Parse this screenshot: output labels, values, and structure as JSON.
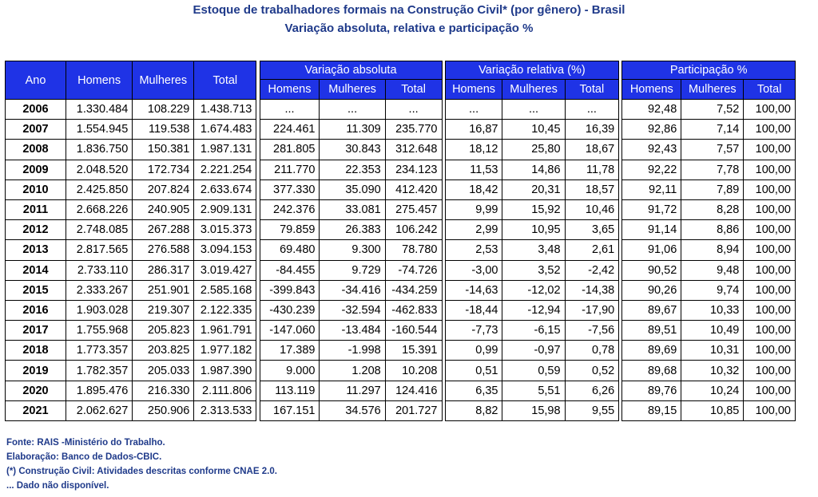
{
  "title": "Estoque de trabalhadores formais na Construção Civil* (por gênero) - Brasil",
  "subtitle": "Variação absoluta, relativa e participação %",
  "headers": {
    "ano": "Ano",
    "homens": "Homens",
    "mulheres": "Mulheres",
    "total": "Total",
    "var_abs": "Variação absoluta",
    "var_rel": "Variação  relativa (%)",
    "part": "Participação %",
    "sub": [
      "Homens",
      "Mulheres",
      "Total"
    ]
  },
  "rows": [
    {
      "ano": "2006",
      "h": "1.330.484",
      "m": "108.229",
      "t": "1.438.713",
      "ah": "...",
      "am": "...",
      "at": "...",
      "rh": "...",
      "rm": "...",
      "rt": "...",
      "ph": "92,48",
      "pm": "7,52",
      "pt": "100,00"
    },
    {
      "ano": "2007",
      "h": "1.554.945",
      "m": "119.538",
      "t": "1.674.483",
      "ah": "224.461",
      "am": "11.309",
      "at": "235.770",
      "rh": "16,87",
      "rm": "10,45",
      "rt": "16,39",
      "ph": "92,86",
      "pm": "7,14",
      "pt": "100,00"
    },
    {
      "ano": "2008",
      "h": "1.836.750",
      "m": "150.381",
      "t": "1.987.131",
      "ah": "281.805",
      "am": "30.843",
      "at": "312.648",
      "rh": "18,12",
      "rm": "25,80",
      "rt": "18,67",
      "ph": "92,43",
      "pm": "7,57",
      "pt": "100,00"
    },
    {
      "ano": "2009",
      "h": "2.048.520",
      "m": "172.734",
      "t": "2.221.254",
      "ah": "211.770",
      "am": "22.353",
      "at": "234.123",
      "rh": "11,53",
      "rm": "14,86",
      "rt": "11,78",
      "ph": "92,22",
      "pm": "7,78",
      "pt": "100,00"
    },
    {
      "ano": "2010",
      "h": "2.425.850",
      "m": "207.824",
      "t": "2.633.674",
      "ah": "377.330",
      "am": "35.090",
      "at": "412.420",
      "rh": "18,42",
      "rm": "20,31",
      "rt": "18,57",
      "ph": "92,11",
      "pm": "7,89",
      "pt": "100,00"
    },
    {
      "ano": "2011",
      "h": "2.668.226",
      "m": "240.905",
      "t": "2.909.131",
      "ah": "242.376",
      "am": "33.081",
      "at": "275.457",
      "rh": "9,99",
      "rm": "15,92",
      "rt": "10,46",
      "ph": "91,72",
      "pm": "8,28",
      "pt": "100,00"
    },
    {
      "ano": "2012",
      "h": "2.748.085",
      "m": "267.288",
      "t": "3.015.373",
      "ah": "79.859",
      "am": "26.383",
      "at": "106.242",
      "rh": "2,99",
      "rm": "10,95",
      "rt": "3,65",
      "ph": "91,14",
      "pm": "8,86",
      "pt": "100,00"
    },
    {
      "ano": "2013",
      "h": "2.817.565",
      "m": "276.588",
      "t": "3.094.153",
      "ah": "69.480",
      "am": "9.300",
      "at": "78.780",
      "rh": "2,53",
      "rm": "3,48",
      "rt": "2,61",
      "ph": "91,06",
      "pm": "8,94",
      "pt": "100,00"
    },
    {
      "ano": "2014",
      "h": "2.733.110",
      "m": "286.317",
      "t": "3.019.427",
      "ah": "-84.455",
      "am": "9.729",
      "at": "-74.726",
      "rh": "-3,00",
      "rm": "3,52",
      "rt": "-2,42",
      "ph": "90,52",
      "pm": "9,48",
      "pt": "100,00"
    },
    {
      "ano": "2015",
      "h": "2.333.267",
      "m": "251.901",
      "t": "2.585.168",
      "ah": "-399.843",
      "am": "-34.416",
      "at": "-434.259",
      "rh": "-14,63",
      "rm": "-12,02",
      "rt": "-14,38",
      "ph": "90,26",
      "pm": "9,74",
      "pt": "100,00"
    },
    {
      "ano": "2016",
      "h": "1.903.028",
      "m": "219.307",
      "t": "2.122.335",
      "ah": "-430.239",
      "am": "-32.594",
      "at": "-462.833",
      "rh": "-18,44",
      "rm": "-12,94",
      "rt": "-17,90",
      "ph": "89,67",
      "pm": "10,33",
      "pt": "100,00"
    },
    {
      "ano": "2017",
      "h": "1.755.968",
      "m": "205.823",
      "t": "1.961.791",
      "ah": "-147.060",
      "am": "-13.484",
      "at": "-160.544",
      "rh": "-7,73",
      "rm": "-6,15",
      "rt": "-7,56",
      "ph": "89,51",
      "pm": "10,49",
      "pt": "100,00"
    },
    {
      "ano": "2018",
      "h": "1.773.357",
      "m": "203.825",
      "t": "1.977.182",
      "ah": "17.389",
      "am": "-1.998",
      "at": "15.391",
      "rh": "0,99",
      "rm": "-0,97",
      "rt": "0,78",
      "ph": "89,69",
      "pm": "10,31",
      "pt": "100,00"
    },
    {
      "ano": "2019",
      "h": "1.782.357",
      "m": "205.033",
      "t": "1.987.390",
      "ah": "9.000",
      "am": "1.208",
      "at": "10.208",
      "rh": "0,51",
      "rm": "0,59",
      "rt": "0,52",
      "ph": "89,68",
      "pm": "10,32",
      "pt": "100,00"
    },
    {
      "ano": "2020",
      "h": "1.895.476",
      "m": "216.330",
      "t": "2.111.806",
      "ah": "113.119",
      "am": "11.297",
      "at": "124.416",
      "rh": "6,35",
      "rm": "5,51",
      "rt": "6,26",
      "ph": "89,76",
      "pm": "10,24",
      "pt": "100,00"
    },
    {
      "ano": "2021",
      "h": "2.062.627",
      "m": "250.906",
      "t": "2.313.533",
      "ah": "167.151",
      "am": "34.576",
      "at": "201.727",
      "rh": "8,82",
      "rm": "15,98",
      "rt": "9,55",
      "ph": "89,15",
      "pm": "10,85",
      "pt": "100,00"
    }
  ],
  "notes": [
    "Fonte: RAIS -Ministério do Trabalho.",
    "Elaboração: Banco de Dados-CBIC.",
    "(*) Construção Civil: Atividades descritas conforme CNAE 2.0.",
    "... Dado não disponível."
  ],
  "colors": {
    "header_bg": "#1f33e6",
    "header_text": "#ffffff",
    "title": "#1f3a8a"
  }
}
